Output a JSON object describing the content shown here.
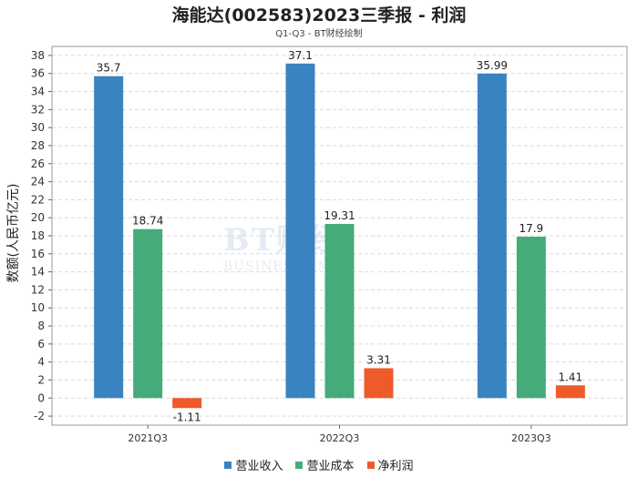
{
  "chart_data": {
    "type": "bar",
    "title": "海能达(002583)2023三季报 - 利润",
    "subtitle": "Q1-Q3 - BT财经绘制",
    "ylabel": "数额(人民币亿元)",
    "categories": [
      "2021Q3",
      "2022Q3",
      "2023Q3"
    ],
    "series": [
      {
        "name": "营业收入",
        "color": "#3a83c1",
        "values": [
          35.7,
          37.1,
          35.99
        ],
        "labels": [
          "35.7",
          "37.1",
          "35.99"
        ]
      },
      {
        "name": "营业成本",
        "color": "#45ab79",
        "values": [
          18.74,
          19.31,
          17.9
        ],
        "labels": [
          "18.74",
          "19.31",
          "17.9"
        ]
      },
      {
        "name": "净利润",
        "color": "#ee5a2a",
        "values": [
          -1.11,
          3.31,
          1.41
        ],
        "labels": [
          "-1.11",
          "3.31",
          "1.41"
        ]
      }
    ],
    "ylim": [
      -3,
      39
    ],
    "yticks": [
      -2,
      0,
      2,
      4,
      6,
      8,
      10,
      12,
      14,
      16,
      18,
      20,
      22,
      24,
      26,
      28,
      30,
      32,
      34,
      36,
      38
    ],
    "grid": true,
    "legend_position": "bottom"
  },
  "watermark": {
    "big": "BT财经",
    "small": "BUSINESSTIMES"
  }
}
